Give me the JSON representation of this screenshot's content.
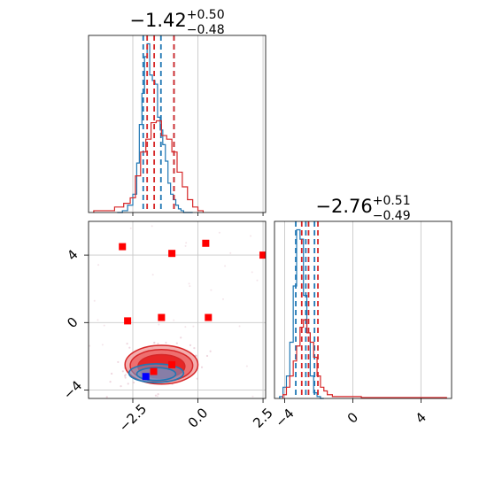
{
  "chart_data": [
    {
      "panel": "x1-marginal-histogram",
      "type": "histogram",
      "title": {
        "base": "−1.42",
        "sup": "+0.50",
        "sub": "−0.48"
      },
      "xlim": [
        -4.2,
        2.6
      ],
      "grid": true,
      "series": [
        {
          "color": "#1f77b4",
          "x": [
            -3.0,
            -2.8,
            -2.6,
            -2.4,
            -2.3,
            -2.2,
            -2.1,
            -2.0,
            -1.9,
            -1.8,
            -1.7,
            -1.6,
            -1.5,
            -1.4,
            -1.3,
            -1.2,
            -1.1,
            -1.0,
            -0.9,
            -0.8,
            -0.7,
            -0.6,
            -0.5,
            -0.3
          ],
          "density": [
            0.0,
            0.01,
            0.04,
            0.1,
            0.27,
            0.48,
            0.65,
            0.85,
            0.92,
            0.75,
            0.72,
            0.7,
            0.52,
            0.45,
            0.37,
            0.28,
            0.16,
            0.1,
            0.07,
            0.04,
            0.02,
            0.01,
            0.0,
            0.0
          ],
          "quantiles": [
            -2.1,
            -1.42,
            -0.92
          ]
        },
        {
          "color": "#d62728",
          "x": [
            -3.8,
            -3.4,
            -3.0,
            -2.7,
            -2.5,
            -2.3,
            -2.1,
            -1.9,
            -1.7,
            -1.5,
            -1.3,
            -1.1,
            -0.9,
            -0.7,
            -0.5,
            -0.3,
            -0.1,
            0.1
          ],
          "density": [
            0.01,
            0.01,
            0.03,
            0.05,
            0.08,
            0.2,
            0.33,
            0.4,
            0.49,
            0.5,
            0.42,
            0.4,
            0.33,
            0.22,
            0.14,
            0.07,
            0.03,
            0.01
          ],
          "quantiles": [
            -1.95,
            -1.68,
            -0.92
          ]
        }
      ]
    },
    {
      "panel": "x2-marginal-histogram",
      "type": "histogram",
      "title": {
        "base": "−2.76",
        "sup": "+0.51",
        "sub": "−0.49"
      },
      "xlim": [
        -4.6,
        5.8
      ],
      "xticks": [
        "−4",
        "0",
        "4"
      ],
      "xtick_values": [
        -4,
        0,
        4
      ],
      "grid": true,
      "series": [
        {
          "color": "#1f77b4",
          "x": [
            -4.2,
            -4.0,
            -3.8,
            -3.6,
            -3.4,
            -3.2,
            -3.0,
            -2.8,
            -2.6,
            -2.4,
            -2.2,
            -2.0,
            -1.8
          ],
          "density": [
            0.01,
            0.06,
            0.12,
            0.3,
            0.6,
            0.9,
            0.85,
            0.55,
            0.35,
            0.12,
            0.03,
            0.01,
            0.0
          ],
          "quantiles": [
            -3.35,
            -2.76,
            -2.25
          ]
        },
        {
          "color": "#d62728",
          "x": [
            -4.0,
            -3.8,
            -3.6,
            -3.4,
            -3.2,
            -3.0,
            -2.8,
            -2.6,
            -2.4,
            -2.2,
            -2.0,
            -1.8,
            -1.6,
            -1.4,
            -1.0,
            -0.5,
            0.0,
            1.0,
            2.0,
            3.0,
            4.0,
            5.0
          ],
          "density": [
            0.02,
            0.06,
            0.12,
            0.2,
            0.28,
            0.38,
            0.42,
            0.35,
            0.3,
            0.22,
            0.12,
            0.06,
            0.04,
            0.02,
            0.01,
            0.01,
            0.01,
            0.005,
            0.005,
            0.005,
            0.005,
            0.005
          ],
          "quantiles": [
            -3.0,
            -2.6,
            -2.05
          ]
        }
      ]
    },
    {
      "panel": "joint-scatter",
      "type": "scatter",
      "xlim": [
        -4.2,
        2.6
      ],
      "ylim": [
        -4.5,
        6.0
      ],
      "xticks": [
        "−2.5",
        "0.0",
        "2.5"
      ],
      "xtick_values": [
        -2.5,
        0.0,
        2.5
      ],
      "yticks": [
        "−4",
        "0",
        "4"
      ],
      "ytick_values": [
        -4,
        0,
        4
      ],
      "grid": true,
      "red_points": [
        [
          -2.9,
          4.5
        ],
        [
          -1.0,
          4.1
        ],
        [
          0.3,
          4.7
        ],
        [
          2.5,
          4.0
        ],
        [
          -2.7,
          0.1
        ],
        [
          -1.4,
          0.3
        ],
        [
          0.4,
          0.3
        ],
        [
          -1.7,
          -2.9
        ],
        [
          -1.0,
          -2.5
        ]
      ],
      "blue_points": [
        [
          -2.0,
          -3.2
        ]
      ],
      "red_contours": [
        {
          "cx": -1.4,
          "cy": -2.5,
          "rx": 1.4,
          "ry": 1.15
        },
        {
          "cx": -1.4,
          "cy": -2.55,
          "rx": 1.2,
          "ry": 0.95
        },
        {
          "cx": -1.4,
          "cy": -2.6,
          "rx": 0.9,
          "ry": 0.7
        }
      ],
      "blue_contours": [
        {
          "cx": -1.6,
          "cy": -3.0,
          "rx": 1.05,
          "ry": 0.55
        },
        {
          "cx": -1.6,
          "cy": -3.05,
          "rx": 0.75,
          "ry": 0.38
        }
      ]
    }
  ]
}
